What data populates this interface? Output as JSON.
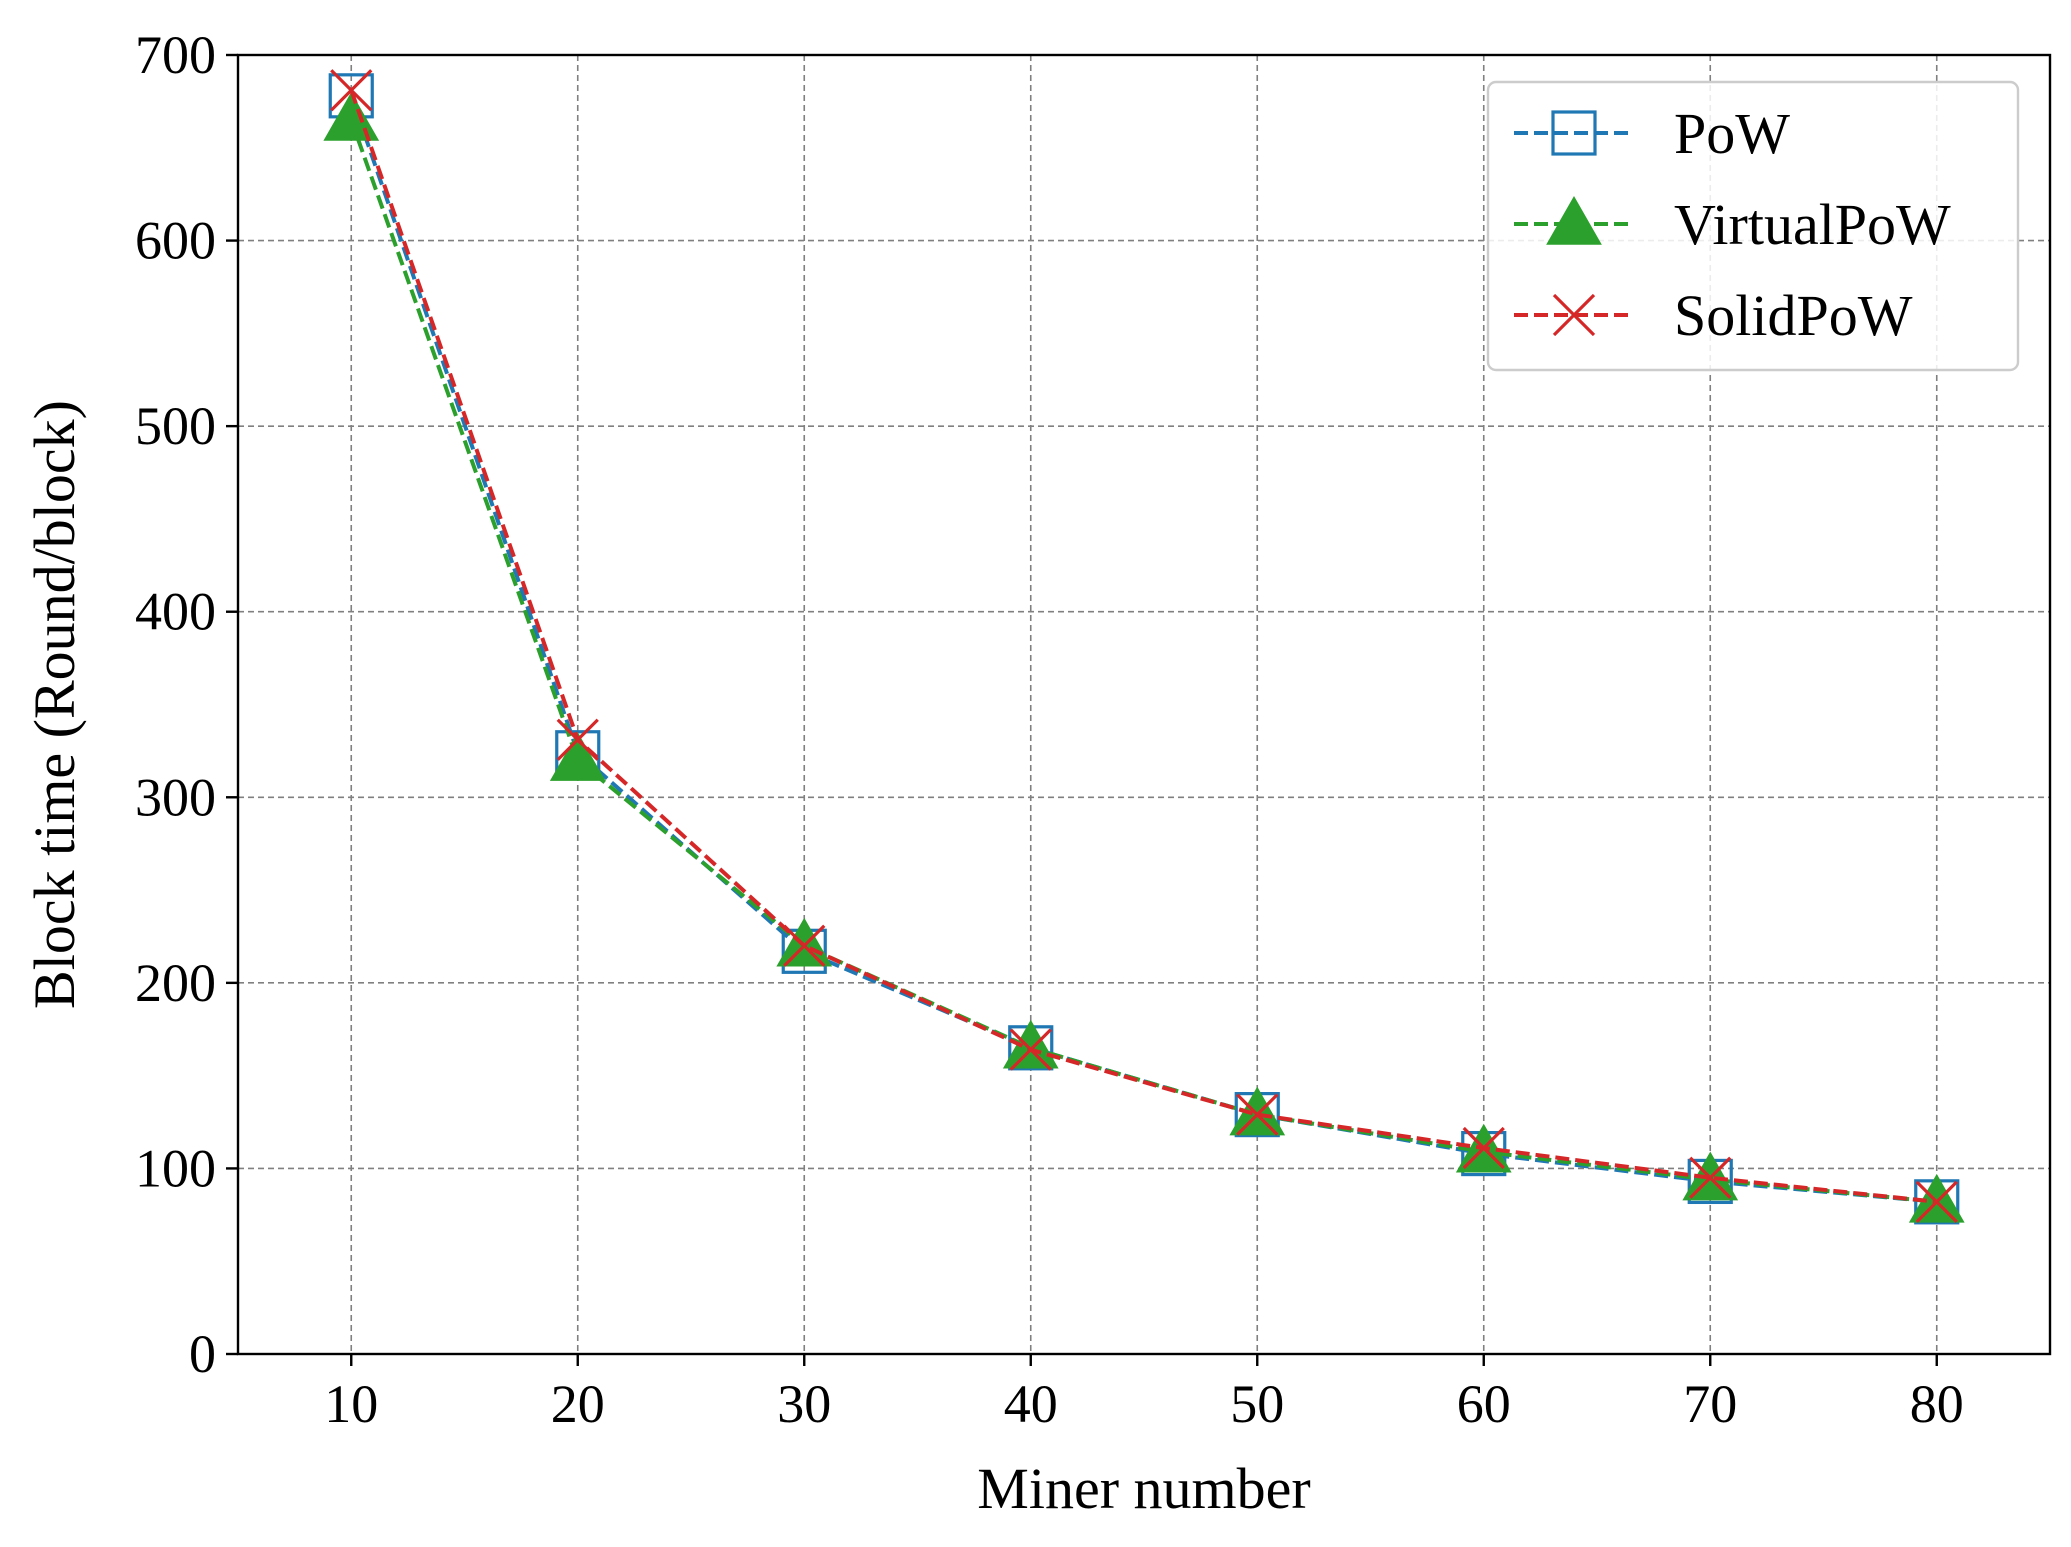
{
  "chart_data": {
    "type": "line",
    "xlabel": "Miner number",
    "ylabel": "Block time (Round/block)",
    "x": [
      10,
      20,
      30,
      40,
      50,
      60,
      70,
      80
    ],
    "xlim": [
      5,
      85
    ],
    "ylim": [
      0,
      700
    ],
    "xticks": [
      10,
      20,
      30,
      40,
      50,
      60,
      70,
      80
    ],
    "yticks": [
      0,
      100,
      200,
      300,
      400,
      500,
      600,
      700
    ],
    "grid": true,
    "legend_position": "top-right",
    "series": [
      {
        "name": "PoW",
        "marker": "square-open",
        "line_style": "dashed",
        "color": "#1f77b4",
        "values": [
          678,
          324,
          217,
          165,
          129,
          108,
          93,
          82
        ]
      },
      {
        "name": "VirtualPoW",
        "marker": "triangle-filled",
        "line_style": "dashed",
        "color": "#2ca02c",
        "values": [
          665,
          320,
          220,
          165,
          129,
          109,
          94,
          82
        ]
      },
      {
        "name": "SolidPoW",
        "marker": "x",
        "line_style": "dashed",
        "color": "#d62728",
        "values": [
          681,
          331,
          220,
          164,
          129,
          111,
          95,
          82
        ]
      }
    ]
  }
}
